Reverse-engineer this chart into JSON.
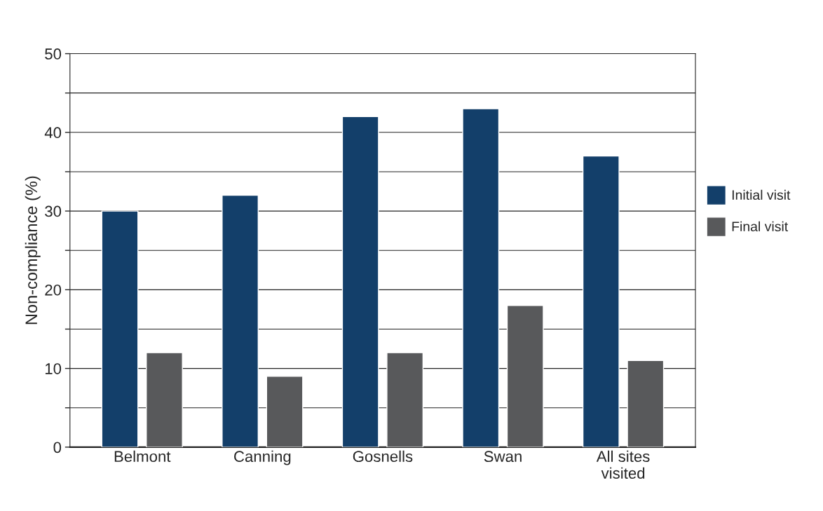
{
  "chart_data": {
    "type": "bar",
    "ylabel": "Non-compliance (%)",
    "categories": [
      "Belmont",
      "Canning",
      "Gosnells",
      "Swan",
      "All sites\nvisited"
    ],
    "series": [
      {
        "name": "Initial visit",
        "color": "#133f6a",
        "values": [
          30,
          32,
          42,
          43,
          37
        ]
      },
      {
        "name": "Final visit",
        "color": "#58595b",
        "values": [
          12,
          9,
          12,
          18,
          11
        ]
      }
    ],
    "ylim": [
      0,
      50
    ],
    "yticks": [
      0,
      {
        "value": 5,
        "label": null
      },
      10,
      {
        "value": 15,
        "label": null
      },
      20,
      {
        "value": 25,
        "label": null
      },
      30,
      {
        "value": 35,
        "label": null
      },
      40,
      {
        "value": 45,
        "label": null
      },
      50
    ],
    "grid": "y",
    "legend": "right"
  }
}
